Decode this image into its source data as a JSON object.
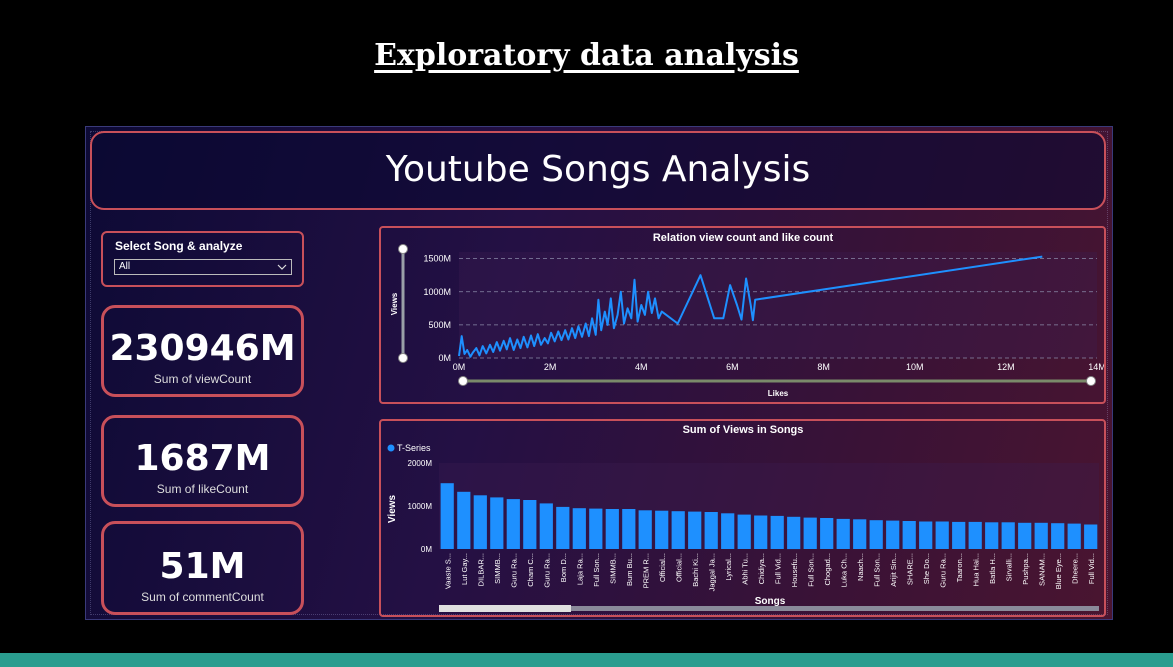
{
  "slide": {
    "title": "Exploratory data analysis"
  },
  "dashboard": {
    "title": "Youtube Songs Analysis",
    "slicer": {
      "title": "Select Song & analyze",
      "value": "All"
    },
    "kpis": [
      {
        "value": "230946M",
        "label": "Sum of viewCount"
      },
      {
        "value": "1687M",
        "label": "Sum of likeCount"
      },
      {
        "value": "51M",
        "label": "Sum of commentCount"
      }
    ]
  },
  "colors": {
    "series": "#1e90ff",
    "border": "#c8505a",
    "footer": "#2a9d8f"
  },
  "chart_data": [
    {
      "type": "line",
      "title": "Relation view count and like count",
      "xlabel": "Likes",
      "ylabel": "Views",
      "xlim": [
        0,
        14000000
      ],
      "ylim": [
        0,
        1600000000
      ],
      "xticks": [
        "0M",
        "2M",
        "4M",
        "6M",
        "8M",
        "10M",
        "12M",
        "14M"
      ],
      "yticks": [
        "0M",
        "500M",
        "1000M",
        "1500M"
      ],
      "grid": true,
      "points": [
        [
          0,
          30000000
        ],
        [
          60000,
          330000000
        ],
        [
          120000,
          60000000
        ],
        [
          180000,
          120000000
        ],
        [
          250000,
          20000000
        ],
        [
          300000,
          80000000
        ],
        [
          380000,
          150000000
        ],
        [
          450000,
          40000000
        ],
        [
          520000,
          180000000
        ],
        [
          600000,
          70000000
        ],
        [
          680000,
          200000000
        ],
        [
          750000,
          90000000
        ],
        [
          830000,
          240000000
        ],
        [
          900000,
          110000000
        ],
        [
          980000,
          260000000
        ],
        [
          1050000,
          130000000
        ],
        [
          1120000,
          300000000
        ],
        [
          1200000,
          120000000
        ],
        [
          1280000,
          280000000
        ],
        [
          1350000,
          150000000
        ],
        [
          1420000,
          320000000
        ],
        [
          1500000,
          160000000
        ],
        [
          1580000,
          340000000
        ],
        [
          1650000,
          180000000
        ],
        [
          1730000,
          360000000
        ],
        [
          1800000,
          200000000
        ],
        [
          1880000,
          300000000
        ],
        [
          1950000,
          220000000
        ],
        [
          2020000,
          380000000
        ],
        [
          2100000,
          250000000
        ],
        [
          2180000,
          400000000
        ],
        [
          2250000,
          270000000
        ],
        [
          2330000,
          420000000
        ],
        [
          2400000,
          280000000
        ],
        [
          2480000,
          450000000
        ],
        [
          2550000,
          300000000
        ],
        [
          2620000,
          480000000
        ],
        [
          2700000,
          320000000
        ],
        [
          2780000,
          520000000
        ],
        [
          2850000,
          330000000
        ],
        [
          2920000,
          600000000
        ],
        [
          3000000,
          350000000
        ],
        [
          3060000,
          880000000
        ],
        [
          3120000,
          420000000
        ],
        [
          3200000,
          700000000
        ],
        [
          3260000,
          500000000
        ],
        [
          3330000,
          900000000
        ],
        [
          3400000,
          450000000
        ],
        [
          3480000,
          650000000
        ],
        [
          3550000,
          1000000000
        ],
        [
          3620000,
          520000000
        ],
        [
          3700000,
          750000000
        ],
        [
          3780000,
          600000000
        ],
        [
          3850000,
          1180000000
        ],
        [
          3920000,
          550000000
        ],
        [
          4000000,
          800000000
        ],
        [
          4080000,
          650000000
        ],
        [
          4150000,
          1000000000
        ],
        [
          4230000,
          680000000
        ],
        [
          4300000,
          900000000
        ],
        [
          4380000,
          600000000
        ],
        [
          4450000,
          700000000
        ],
        [
          4800000,
          520000000
        ],
        [
          5300000,
          1250000000
        ],
        [
          5600000,
          600000000
        ],
        [
          5800000,
          600000000
        ],
        [
          5950000,
          1100000000
        ],
        [
          6100000,
          800000000
        ],
        [
          6200000,
          580000000
        ],
        [
          6300000,
          1200000000
        ],
        [
          6400000,
          800000000
        ],
        [
          6450000,
          570000000
        ],
        [
          6500000,
          880000000
        ],
        [
          12800000,
          1530000000
        ]
      ]
    },
    {
      "type": "bar",
      "title": "Sum of Views in Songs",
      "xlabel": "Songs",
      "ylabel": "Views",
      "ylim": [
        0,
        2000000000
      ],
      "yticks": [
        "0M",
        "1000M",
        "2000M"
      ],
      "legend_position": "top-left",
      "categories": [
        "Vaaste S...",
        "Lut Gay...",
        "DILBAR...",
        "SIMMB...",
        "Guru Ra...",
        "Cham C...",
        "Guru Ra...",
        "Bom D...",
        "Laja Ra...",
        "Full Son...",
        "SIMMB...",
        "Bum Bu...",
        "PREM R...",
        "Official...",
        "Official...",
        "Bachi Ki...",
        "Jaggal Ja...",
        "Lyrical...",
        "Abhi Tu...",
        "Chidiya...",
        "Full Vid...",
        "Housefu...",
        "Full Son...",
        "Chogad...",
        "Luka Ch...",
        "Naach...",
        "Full Son...",
        "Arijit Sin...",
        "SHARE...",
        "She Do...",
        "Guru Ra...",
        "Taaron...",
        "Hua Hai...",
        "Batla H...",
        "Sirvalli...",
        "Pushpa...",
        "SANAM...",
        "Blue Eye...",
        "Dheere...",
        "Full Vid..."
      ],
      "series": [
        {
          "name": "T-Series",
          "values": [
            1530000000,
            1330000000,
            1250000000,
            1200000000,
            1160000000,
            1140000000,
            1060000000,
            980000000,
            950000000,
            940000000,
            930000000,
            930000000,
            900000000,
            890000000,
            880000000,
            870000000,
            860000000,
            830000000,
            800000000,
            780000000,
            770000000,
            750000000,
            730000000,
            720000000,
            700000000,
            690000000,
            670000000,
            660000000,
            650000000,
            640000000,
            640000000,
            630000000,
            630000000,
            620000000,
            620000000,
            610000000,
            610000000,
            600000000,
            590000000,
            570000000
          ]
        }
      ]
    }
  ]
}
